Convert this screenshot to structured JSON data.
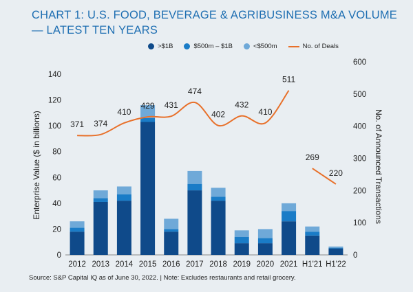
{
  "title": {
    "prefix": "CHART 1:",
    "main": "U.S. FOOD, BEVERAGE & AGRIBUSINESS M&A VOLUME — LATEST TEN YEARS"
  },
  "legend": [
    {
      "label": ">$1B",
      "color": "#0f4a8a",
      "shape": "dot"
    },
    {
      "label": "$500m – $1B",
      "color": "#1a7cc7",
      "shape": "dot"
    },
    {
      "label": "<$500m",
      "color": "#6fa9d8",
      "shape": "dot"
    },
    {
      "label": "No. of Deals",
      "color": "#e8702a",
      "shape": "line"
    }
  ],
  "source": "Source: S&P Capital IQ as of June 30, 2022. | Note:  Excludes restaurants and retail grocery.",
  "chart_data": {
    "type": "bar",
    "stacked": true,
    "categories": [
      "2012",
      "2013",
      "2014",
      "2015",
      "2016",
      "2017",
      "2018",
      "2019",
      "2020",
      "2021",
      "H1'21",
      "H1'22"
    ],
    "series": [
      {
        "name": ">$1B",
        "color": "#0f4a8a",
        "values": [
          18,
          41,
          42,
          103,
          18,
          50,
          42,
          9,
          9,
          26,
          15,
          5
        ]
      },
      {
        "name": "$500m – $1B",
        "color": "#1a7cc7",
        "values": [
          3,
          3,
          5,
          3,
          2,
          5,
          3,
          5,
          4,
          8,
          3,
          0.5
        ]
      },
      {
        "name": "<$500m",
        "color": "#6fa9d8",
        "values": [
          5,
          6,
          6,
          10,
          8,
          10,
          7,
          5,
          7,
          6,
          4,
          1
        ]
      }
    ],
    "deals": {
      "name": "No. of Deals",
      "color": "#e8702a",
      "segments": [
        {
          "categories": [
            "2012",
            "2013",
            "2014",
            "2015",
            "2016",
            "2017",
            "2018",
            "2019",
            "2020",
            "2021"
          ],
          "values": [
            371,
            374,
            410,
            429,
            431,
            474,
            402,
            432,
            410,
            511
          ]
        },
        {
          "categories": [
            "H1'21",
            "H1'22"
          ],
          "values": [
            269,
            220
          ]
        }
      ]
    },
    "ylabel": "Enterprise Value ($ in billions)",
    "ylabel_right": "No. of Announced Transactions",
    "ylim": [
      0,
      140
    ],
    "yticks": [
      "0",
      "20",
      "40",
      "60",
      "80",
      "100",
      "120",
      "140"
    ],
    "ylim_right": [
      0,
      600
    ],
    "yticks_right": [
      "0",
      "100",
      "200",
      "300",
      "400",
      "500",
      "600"
    ],
    "grid": false,
    "legend_position": "top-center"
  }
}
